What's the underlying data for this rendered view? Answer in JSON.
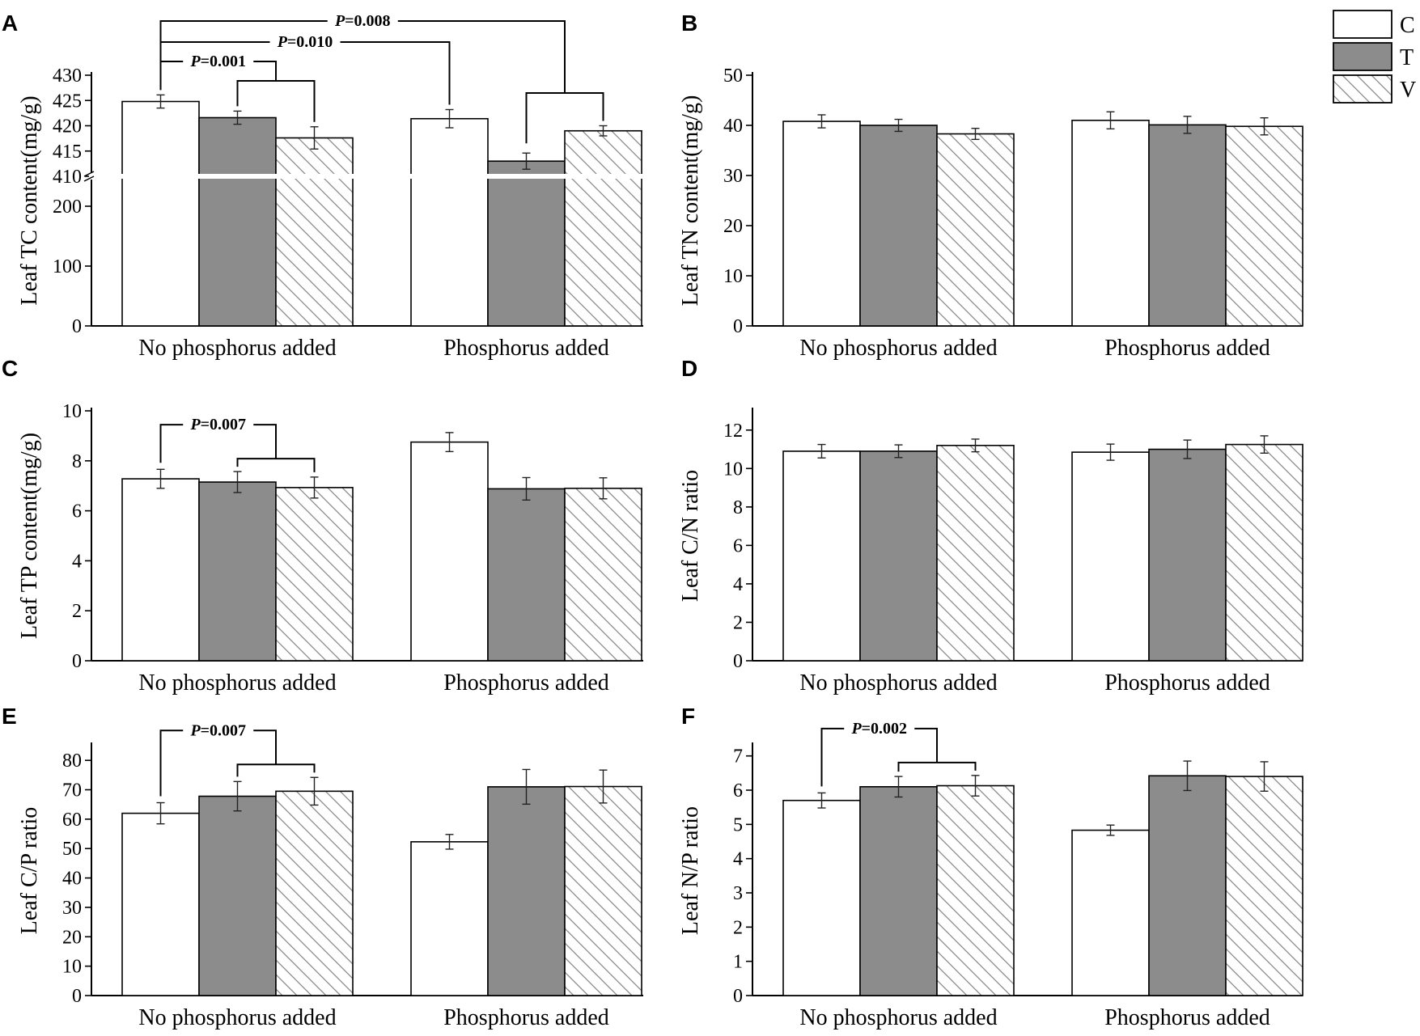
{
  "legend": [
    {
      "key": "C",
      "label": "C",
      "fill": "#ffffff"
    },
    {
      "key": "T",
      "label": "T",
      "fill": "#8c8c8c"
    },
    {
      "key": "V",
      "label": "V",
      "fill": "hatch"
    }
  ],
  "colors": {
    "C": "#ffffff",
    "T": "#8c8c8c",
    "axis": "#000000"
  },
  "chart_data": [
    {
      "id": "A",
      "type": "bar",
      "letter": "A",
      "ylabel": "Leaf TC content(mg/g)",
      "categories": [
        "No phosphorus added",
        "Phosphorus added"
      ],
      "axis_break": true,
      "yticks_low": [
        0,
        100,
        200
      ],
      "yticks_high": [
        410,
        415,
        420,
        425,
        430
      ],
      "series": [
        {
          "name": "C",
          "values": [
            424.8,
            421.4
          ],
          "errors": [
            1.3,
            1.8
          ]
        },
        {
          "name": "T",
          "values": [
            421.6,
            413.0
          ],
          "errors": [
            1.3,
            1.6
          ]
        },
        {
          "name": "V",
          "values": [
            417.6,
            419.0
          ],
          "errors": [
            2.2,
            1.0
          ]
        }
      ],
      "annotations": [
        {
          "text": "P=0.001",
          "level": 0
        },
        {
          "text": "P=0.010",
          "level": 1
        },
        {
          "text": "P=0.008",
          "level": 2
        }
      ]
    },
    {
      "id": "B",
      "type": "bar",
      "letter": "B",
      "ylabel": "Leaf TN content(mg/g)",
      "categories": [
        "No phosphorus added",
        "Phosphorus added"
      ],
      "ylim": [
        0,
        50
      ],
      "yticks": [
        0,
        10,
        20,
        30,
        40,
        50
      ],
      "series": [
        {
          "name": "C",
          "values": [
            40.8,
            41.0
          ],
          "errors": [
            1.3,
            1.7
          ]
        },
        {
          "name": "T",
          "values": [
            40.0,
            40.1
          ],
          "errors": [
            1.2,
            1.7
          ]
        },
        {
          "name": "V",
          "values": [
            38.3,
            39.8
          ],
          "errors": [
            1.1,
            1.7
          ]
        }
      ],
      "annotations": []
    },
    {
      "id": "C",
      "type": "bar",
      "letter": "C",
      "ylabel": "Leaf TP content(mg/g)",
      "categories": [
        "No phosphorus added",
        "Phosphorus added"
      ],
      "ylim": [
        0,
        10
      ],
      "yticks": [
        0,
        2,
        4,
        6,
        8,
        10
      ],
      "series": [
        {
          "name": "C",
          "values": [
            7.28,
            8.75
          ],
          "errors": [
            0.38,
            0.38
          ]
        },
        {
          "name": "T",
          "values": [
            7.15,
            6.88
          ],
          "errors": [
            0.42,
            0.45
          ]
        },
        {
          "name": "V",
          "values": [
            6.93,
            6.9
          ],
          "errors": [
            0.42,
            0.42
          ]
        }
      ],
      "annotations": [
        {
          "text": "P=0.007",
          "level": 0
        }
      ]
    },
    {
      "id": "D",
      "type": "bar",
      "letter": "D",
      "ylabel": "Leaf C/N ratio",
      "categories": [
        "No phosphorus added",
        "Phosphorus added"
      ],
      "ylim": [
        0,
        13
      ],
      "yticks": [
        0,
        2,
        4,
        6,
        8,
        10,
        12
      ],
      "series": [
        {
          "name": "C",
          "values": [
            10.9,
            10.85
          ],
          "errors": [
            0.35,
            0.42
          ]
        },
        {
          "name": "T",
          "values": [
            10.9,
            11.0
          ],
          "errors": [
            0.33,
            0.48
          ]
        },
        {
          "name": "V",
          "values": [
            11.2,
            11.25
          ],
          "errors": [
            0.33,
            0.45
          ]
        }
      ],
      "annotations": []
    },
    {
      "id": "E",
      "type": "bar",
      "letter": "E",
      "ylabel": "Leaf C/P ratio",
      "categories": [
        "No phosphorus added",
        "Phosphorus added"
      ],
      "ylim": [
        0,
        85
      ],
      "yticks": [
        0,
        10,
        20,
        30,
        40,
        50,
        60,
        70,
        80
      ],
      "series": [
        {
          "name": "C",
          "values": [
            62.0,
            52.3
          ],
          "errors": [
            3.6,
            2.5
          ]
        },
        {
          "name": "T",
          "values": [
            67.8,
            71.0
          ],
          "errors": [
            5.0,
            5.9
          ]
        },
        {
          "name": "V",
          "values": [
            69.5,
            71.1
          ],
          "errors": [
            4.7,
            5.6
          ]
        }
      ],
      "annotations": [
        {
          "text": "P=0.007",
          "level": 0
        }
      ]
    },
    {
      "id": "F",
      "type": "bar",
      "letter": "F",
      "ylabel": "Leaf N/P ratio",
      "categories": [
        "No phosphorus added",
        "Phosphorus added"
      ],
      "ylim": [
        0,
        7.3
      ],
      "yticks": [
        0,
        1,
        2,
        3,
        4,
        5,
        6,
        7
      ],
      "series": [
        {
          "name": "C",
          "values": [
            5.7,
            4.83
          ],
          "errors": [
            0.22,
            0.15
          ]
        },
        {
          "name": "T",
          "values": [
            6.1,
            6.42
          ],
          "errors": [
            0.3,
            0.43
          ]
        },
        {
          "name": "V",
          "values": [
            6.13,
            6.4
          ],
          "errors": [
            0.3,
            0.43
          ]
        }
      ],
      "annotations": [
        {
          "text": "P=0.002",
          "level": 0
        }
      ]
    }
  ]
}
